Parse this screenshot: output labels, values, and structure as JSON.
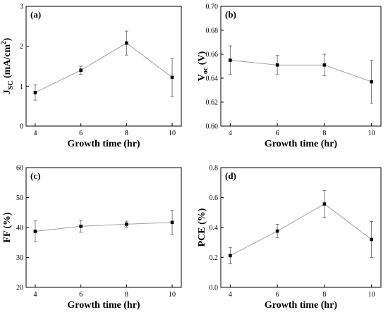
{
  "chart_data": [
    {
      "type": "line",
      "panel_label": "(a)",
      "xlabel": "Growth time (hr)",
      "ylabel": "J",
      "ylabel_sub": "SC",
      "ylabel_unit": " (mA/cm",
      "ylabel_sup": "2",
      "ylabel_end": ")",
      "x": [
        4,
        6,
        8,
        10
      ],
      "y": [
        0.84,
        1.4,
        2.08,
        1.22
      ],
      "yerr": [
        0.19,
        0.1,
        0.3,
        0.48
      ],
      "xlim": [
        3.6,
        10.4
      ],
      "ylim": [
        0,
        3
      ],
      "xticks": [
        4,
        6,
        8,
        10
      ],
      "yticks": [
        0,
        1,
        2,
        3
      ],
      "xtick_labels": [
        "4",
        "6",
        "8",
        "10"
      ],
      "ytick_labels": [
        "0",
        "1",
        "2",
        "3"
      ]
    },
    {
      "type": "line",
      "panel_label": "(b)",
      "xlabel": "Growth time (hr)",
      "ylabel": "V",
      "ylabel_sub": "oc",
      "ylabel_unit": " (V)",
      "ylabel_sup": "",
      "ylabel_end": "",
      "x": [
        4,
        6,
        8,
        10
      ],
      "y": [
        0.655,
        0.651,
        0.651,
        0.637
      ],
      "yerr": [
        0.012,
        0.008,
        0.009,
        0.018
      ],
      "xlim": [
        3.6,
        10.4
      ],
      "ylim": [
        0.6,
        0.7
      ],
      "xticks": [
        4,
        6,
        8,
        10
      ],
      "yticks": [
        0.6,
        0.62,
        0.64,
        0.66,
        0.68,
        0.7
      ],
      "xtick_labels": [
        "4",
        "6",
        "8",
        "10"
      ],
      "ytick_labels": [
        "0.60",
        "0.62",
        "0.64",
        "0.66",
        "0.68",
        "0.70"
      ]
    },
    {
      "type": "line",
      "panel_label": "(c)",
      "xlabel": "Growth time (hr)",
      "ylabel": "FF (%)",
      "ylabel_sub": "",
      "ylabel_unit": "",
      "ylabel_sup": "",
      "ylabel_end": "",
      "x": [
        4,
        6,
        8,
        10
      ],
      "y": [
        38.7,
        40.4,
        41.1,
        41.7
      ],
      "yerr": [
        3.5,
        2.0,
        1.0,
        4.0
      ],
      "xlim": [
        3.6,
        10.4
      ],
      "ylim": [
        20,
        60
      ],
      "xticks": [
        4,
        6,
        8,
        10
      ],
      "yticks": [
        20,
        30,
        40,
        50,
        60
      ],
      "xtick_labels": [
        "4",
        "6",
        "8",
        "10"
      ],
      "ytick_labels": [
        "20",
        "30",
        "40",
        "50",
        "60"
      ]
    },
    {
      "type": "line",
      "panel_label": "(d)",
      "xlabel": "Growth time (hr)",
      "ylabel": "PCE (%)",
      "ylabel_sub": "",
      "ylabel_unit": "",
      "ylabel_sup": "",
      "ylabel_end": "",
      "x": [
        4,
        6,
        8,
        10
      ],
      "y": [
        0.212,
        0.376,
        0.557,
        0.32
      ],
      "yerr": [
        0.055,
        0.045,
        0.09,
        0.12
      ],
      "xlim": [
        3.6,
        10.4
      ],
      "ylim": [
        0,
        0.8
      ],
      "xticks": [
        4,
        6,
        8,
        10
      ],
      "yticks": [
        0,
        0.2,
        0.4,
        0.6,
        0.8
      ],
      "xtick_labels": [
        "4",
        "6",
        "8",
        "10"
      ],
      "ytick_labels": [
        "0.0",
        "0.2",
        "0.4",
        "0.6",
        "0.8"
      ]
    }
  ]
}
